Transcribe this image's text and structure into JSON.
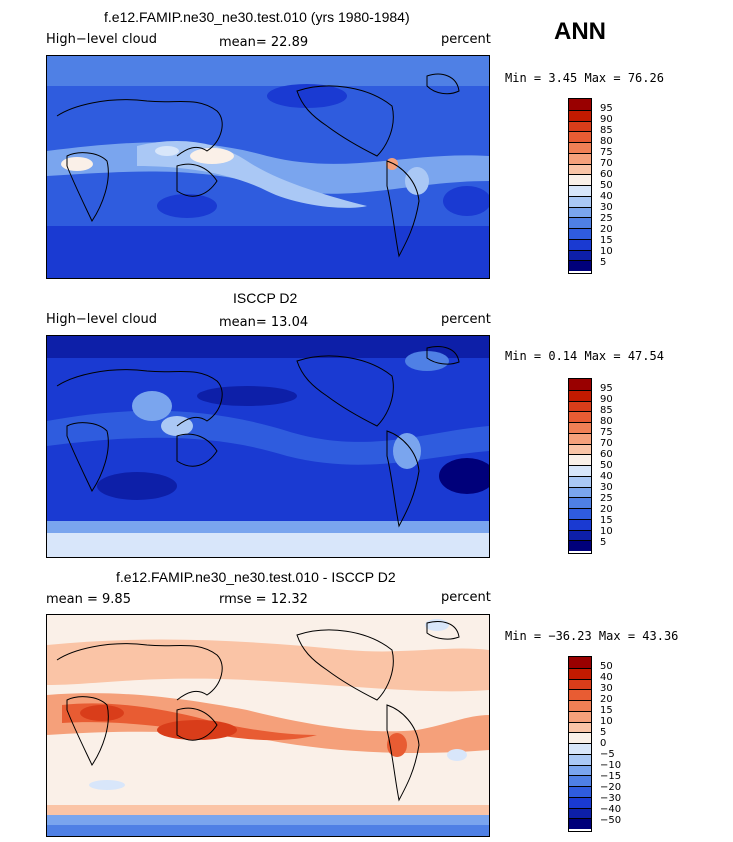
{
  "season": "ANN",
  "panels": [
    {
      "title": "f.e12.FAMIP.ne30_ne30.test.010 (yrs 1980-1984)",
      "left_label": "High−level cloud",
      "center_label": "mean=  22.89",
      "right_label": "percent",
      "minmax": "Min =    3.45 Max =   76.26",
      "colorbar_labels": [
        "95",
        "90",
        "85",
        "80",
        "75",
        "70",
        "60",
        "50",
        "40",
        "30",
        "25",
        "20",
        "15",
        "10",
        "5"
      ],
      "colorbar_colors": [
        "#990000",
        "#c21a00",
        "#d93d1a",
        "#e85c33",
        "#f08055",
        "#f5a07a",
        "#fac4a6",
        "#faf0e8",
        "#d8e6fa",
        "#aac8f5",
        "#7aa5ee",
        "#4f80e5",
        "#2f5cde",
        "#1a3ad2",
        "#0d1fa8",
        "#00007a"
      ],
      "mean_value": 22.89,
      "min_value": 3.45,
      "max_value": 76.26
    },
    {
      "title": "ISCCP D2",
      "left_label": "High−level cloud",
      "center_label": "mean=  13.04",
      "right_label": "percent",
      "minmax": "Min =    0.14 Max =   47.54",
      "colorbar_labels": [
        "95",
        "90",
        "85",
        "80",
        "75",
        "70",
        "60",
        "50",
        "40",
        "30",
        "25",
        "20",
        "15",
        "10",
        "5"
      ],
      "colorbar_colors": [
        "#990000",
        "#c21a00",
        "#d93d1a",
        "#e85c33",
        "#f08055",
        "#f5a07a",
        "#fac4a6",
        "#faf0e8",
        "#d8e6fa",
        "#aac8f5",
        "#7aa5ee",
        "#4f80e5",
        "#2f5cde",
        "#1a3ad2",
        "#0d1fa8",
        "#00007a"
      ],
      "mean_value": 13.04,
      "min_value": 0.14,
      "max_value": 47.54
    },
    {
      "title": "f.e12.FAMIP.ne30_ne30.test.010 - ISCCP D2",
      "left_label": "mean =    9.85",
      "center_label": "rmse =   12.32",
      "right_label": "percent",
      "minmax": "Min = −36.23 Max =   43.36",
      "colorbar_labels": [
        "50",
        "40",
        "30",
        "20",
        "15",
        "10",
        "5",
        "0",
        "−5",
        "−10",
        "−15",
        "−20",
        "−30",
        "−40",
        "−50"
      ],
      "colorbar_colors": [
        "#990000",
        "#c21a00",
        "#d93d1a",
        "#e85c33",
        "#f08055",
        "#f5a07a",
        "#fac4a6",
        "#faf0e8",
        "#d8e6fa",
        "#aac8f5",
        "#7aa5ee",
        "#4f80e5",
        "#2f5cde",
        "#1a3ad2",
        "#0d1fa8",
        "#00007a"
      ],
      "mean_value": 9.85,
      "rmse_value": 12.32,
      "min_value": -36.23,
      "max_value": 43.36
    }
  ]
}
